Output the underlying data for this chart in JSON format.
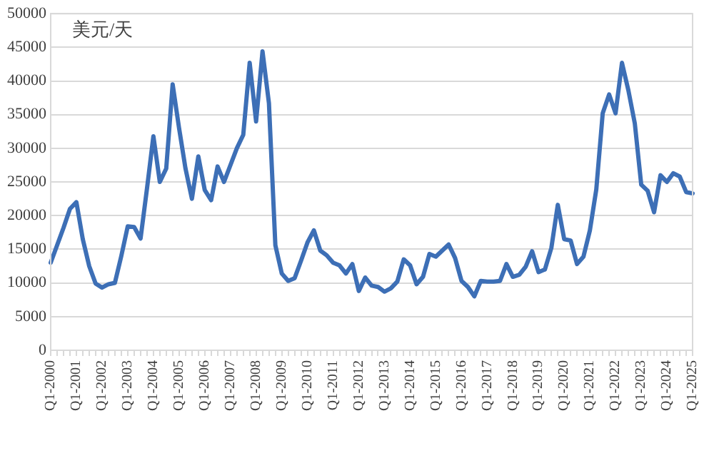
{
  "chart_data": {
    "type": "line",
    "ylabel": "美元/天",
    "categories": [
      "Q1-2000",
      null,
      null,
      null,
      "Q1-2001",
      null,
      null,
      null,
      "Q1-2002",
      null,
      null,
      null,
      "Q1-2003",
      null,
      null,
      null,
      "Q1-2004",
      null,
      null,
      null,
      "Q1-2005",
      null,
      null,
      null,
      "Q1-2006",
      null,
      null,
      null,
      "Q1-2007",
      null,
      null,
      null,
      "Q1-2008",
      null,
      null,
      null,
      "Q1-2009",
      null,
      null,
      null,
      "Q1-2010",
      null,
      null,
      null,
      "Q1-2011",
      null,
      null,
      null,
      "Q1-2012",
      null,
      null,
      null,
      "Q1-2013",
      null,
      null,
      null,
      "Q1-2014",
      null,
      null,
      null,
      "Q1-2015",
      null,
      null,
      null,
      "Q1-2016",
      null,
      null,
      null,
      "Q1-2017",
      null,
      null,
      null,
      "Q1-2018",
      null,
      null,
      null,
      "Q1-2019",
      null,
      null,
      null,
      "Q1-2020",
      null,
      null,
      null,
      "Q1-2021",
      null,
      null,
      null,
      "Q1-2022",
      null,
      null,
      null,
      "Q1-2023",
      null,
      null,
      null,
      "Q1-2024",
      null,
      null,
      null,
      "Q1-2025"
    ],
    "series": [
      {
        "color": "#3d6fb6",
        "values": [
          13000,
          15600,
          18200,
          21000,
          22000,
          16500,
          12500,
          9900,
          9300,
          9800,
          10000,
          14000,
          18400,
          18300,
          16600,
          24000,
          31800,
          25000,
          27000,
          39500,
          33000,
          27000,
          22500,
          28800,
          23800,
          22300,
          27300,
          25000,
          27500,
          30000,
          32000,
          42700,
          34000,
          44400,
          36700,
          15600,
          11400,
          10300,
          10700,
          13300,
          16000,
          17800,
          14800,
          14100,
          13000,
          12600,
          11400,
          12800,
          8800,
          10800,
          9600,
          9400,
          8700,
          9200,
          10200,
          13500,
          12600,
          9800,
          10900,
          14300,
          13900,
          14800,
          15700,
          13700,
          10300,
          9400,
          8000,
          10300,
          10200,
          10200,
          10300,
          12800,
          10900,
          11200,
          12400,
          14700,
          11600,
          12000,
          15200,
          21600,
          16500,
          16300,
          12800,
          13900,
          17800,
          23900,
          35200,
          38000,
          35200,
          42700,
          38600,
          33700,
          24600,
          23700,
          20500,
          26000,
          25000,
          26300,
          25800,
          23500,
          23300
        ]
      }
    ],
    "ylim": [
      0,
      50000
    ],
    "yticks": [
      0,
      5000,
      10000,
      15000,
      20000,
      25000,
      30000,
      35000,
      40000,
      45000,
      50000
    ],
    "grid": "y",
    "legend": false,
    "marker": "none",
    "line_style": "solid"
  }
}
